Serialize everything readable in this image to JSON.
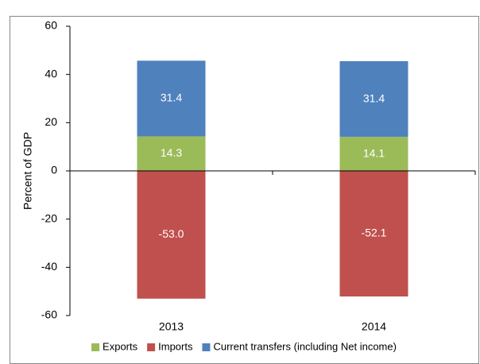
{
  "chart_data": {
    "type": "stacked_bar",
    "ylabel": "Percent of GDP",
    "categories": [
      "2013",
      "2014"
    ],
    "series": [
      {
        "name": "Exports",
        "color": "#9bbb59",
        "values": [
          14.3,
          14.1
        ],
        "value_labels": [
          "14.3",
          "14.1"
        ]
      },
      {
        "name": "Imports",
        "color": "#c0504d",
        "values": [
          -53.0,
          -52.1
        ],
        "value_labels": [
          "-53.0",
          "-52.1"
        ]
      },
      {
        "name": "Current transfers (including Net income)",
        "color": "#4f81bd",
        "values": [
          31.4,
          31.4
        ],
        "value_labels": [
          "31.4",
          "31.4"
        ]
      }
    ],
    "ylim": [
      -60,
      60
    ],
    "yticks": [
      -60,
      -40,
      -20,
      0,
      20,
      40,
      60
    ],
    "grid": false,
    "legend": "bottom"
  }
}
